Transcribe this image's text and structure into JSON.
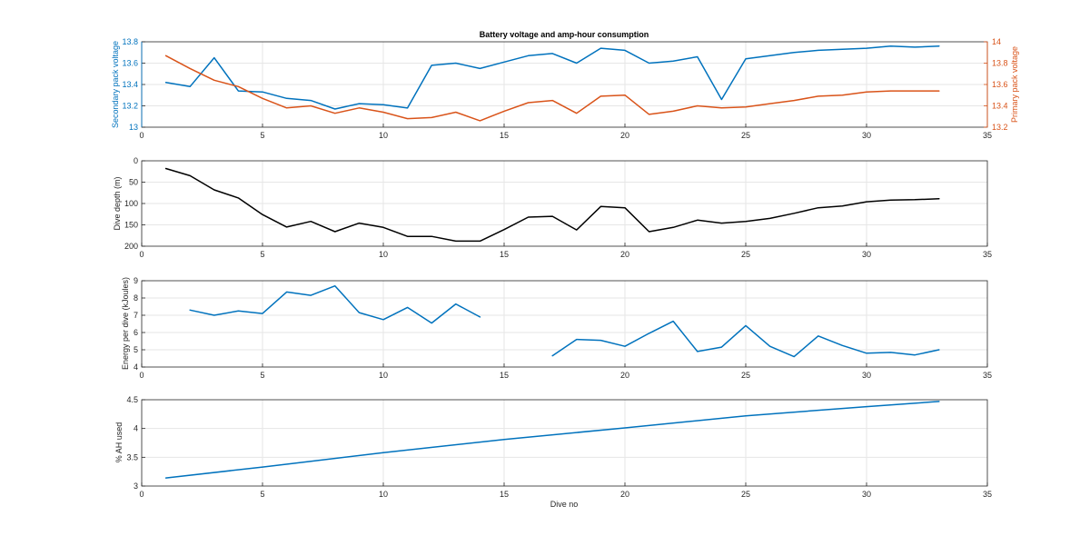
{
  "figure": {
    "background": "#ffffff",
    "axis_color": "#262626",
    "grid_color": "#e6e6e6"
  },
  "chart_data": [
    {
      "type": "line",
      "title": "Battery voltage and amp-hour consumption",
      "xlabel": "",
      "xlim": [
        0,
        35
      ],
      "xticks": [
        0,
        5,
        10,
        15,
        20,
        25,
        30,
        35
      ],
      "ylabel": "Secondary pack voltage",
      "ylim": [
        13,
        13.8
      ],
      "yticks": [
        "13",
        "13.2",
        "13.4",
        "13.6",
        "13.8"
      ],
      "y_color": "#0072bd",
      "y2label": "Primary pack voltage",
      "y2lim": [
        13.2,
        14
      ],
      "y2ticks": [
        "13.2",
        "13.4",
        "13.6",
        "13.8",
        "14"
      ],
      "y2_color": "#d95319",
      "grid": true,
      "series": [
        {
          "axis": "left",
          "color": "#0072bd",
          "x": [
            1,
            2,
            3,
            4,
            5,
            6,
            7,
            8,
            9,
            10,
            11,
            12,
            13,
            14,
            15,
            16,
            17,
            18,
            19,
            20,
            21,
            22,
            23,
            24,
            25,
            26,
            27,
            28,
            29,
            30,
            31,
            32,
            33
          ],
          "y": [
            13.42,
            13.38,
            13.65,
            13.34,
            13.33,
            13.27,
            13.25,
            13.17,
            13.22,
            13.21,
            13.18,
            13.58,
            13.6,
            13.55,
            13.61,
            13.67,
            13.69,
            13.6,
            13.74,
            13.72,
            13.6,
            13.62,
            13.66,
            13.26,
            13.64,
            13.67,
            13.7,
            13.72,
            13.73,
            13.74,
            13.76,
            13.75,
            13.76
          ]
        },
        {
          "axis": "right",
          "color": "#d95319",
          "x": [
            1,
            2,
            3,
            4,
            5,
            6,
            7,
            8,
            9,
            10,
            11,
            12,
            13,
            14,
            15,
            16,
            17,
            18,
            19,
            20,
            21,
            22,
            23,
            24,
            25,
            26,
            27,
            28,
            29,
            30,
            31,
            32,
            33
          ],
          "y": [
            13.87,
            13.75,
            13.64,
            13.58,
            13.47,
            13.38,
            13.4,
            13.33,
            13.38,
            13.34,
            13.28,
            13.29,
            13.34,
            13.26,
            13.35,
            13.43,
            13.45,
            13.33,
            13.49,
            13.5,
            13.32,
            13.35,
            13.4,
            13.38,
            13.39,
            13.42,
            13.45,
            13.49,
            13.5,
            13.53,
            13.54,
            13.54,
            13.54
          ]
        }
      ]
    },
    {
      "type": "line",
      "title": "",
      "xlabel": "",
      "xlim": [
        0,
        35
      ],
      "xticks": [
        0,
        5,
        10,
        15,
        20,
        25,
        30,
        35
      ],
      "ylabel": "Dive depth (m)",
      "ylim": [
        0,
        200
      ],
      "y_reversed": true,
      "yticks": [
        "0",
        "50",
        "100",
        "150",
        "200"
      ],
      "grid": true,
      "series": [
        {
          "color": "#000000",
          "x": [
            1,
            2,
            3,
            4,
            5,
            6,
            7,
            8,
            9,
            10,
            11,
            12,
            13,
            14,
            15,
            16,
            17,
            18,
            19,
            20,
            21,
            22,
            23,
            24,
            25,
            26,
            27,
            28,
            29,
            30,
            31,
            32,
            33
          ],
          "y": [
            18,
            35,
            68,
            87,
            126,
            155,
            142,
            166,
            146,
            156,
            177,
            177,
            188,
            188,
            161,
            132,
            130,
            162,
            107,
            110,
            166,
            156,
            139,
            146,
            142,
            135,
            123,
            110,
            106,
            96,
            92,
            91,
            89
          ]
        }
      ]
    },
    {
      "type": "line",
      "title": "",
      "xlabel": "",
      "xlim": [
        0,
        35
      ],
      "xticks": [
        0,
        5,
        10,
        15,
        20,
        25,
        30,
        35
      ],
      "ylabel": "Energy per dive (kJoules)",
      "ylim": [
        4,
        9
      ],
      "yticks": [
        "4",
        "5",
        "6",
        "7",
        "8",
        "9"
      ],
      "grid": true,
      "series": [
        {
          "color": "#0072bd",
          "x": [
            2,
            3,
            4,
            5,
            6,
            7,
            8,
            9,
            10,
            11,
            12,
            13,
            14
          ],
          "y": [
            7.3,
            7.0,
            7.25,
            7.1,
            8.35,
            8.15,
            8.7,
            7.15,
            6.75,
            7.45,
            6.55,
            7.65,
            6.9
          ]
        },
        {
          "color": "#0072bd",
          "x": [
            17,
            18,
            19,
            20,
            21,
            22,
            23,
            24,
            25,
            26,
            27,
            28,
            29,
            30,
            31,
            32,
            33
          ],
          "y": [
            4.65,
            5.6,
            5.55,
            5.2,
            5.95,
            6.65,
            4.9,
            5.15,
            6.4,
            5.2,
            4.6,
            5.8,
            5.25,
            4.8,
            4.85,
            4.7,
            5.0
          ]
        }
      ]
    },
    {
      "type": "line",
      "title": "",
      "xlabel": "Dive no",
      "xlim": [
        0,
        35
      ],
      "xticks": [
        0,
        5,
        10,
        15,
        20,
        25,
        30,
        35
      ],
      "ylabel": "% AH used",
      "ylim": [
        3,
        4.5
      ],
      "yticks": [
        "3",
        "3.5",
        "4",
        "4.5"
      ],
      "grid": true,
      "series": [
        {
          "color": "#0072bd",
          "x": [
            1,
            5,
            10,
            15,
            20,
            25,
            30,
            33
          ],
          "y": [
            3.14,
            3.33,
            3.58,
            3.81,
            4.01,
            4.22,
            4.38,
            4.47
          ]
        }
      ]
    }
  ]
}
